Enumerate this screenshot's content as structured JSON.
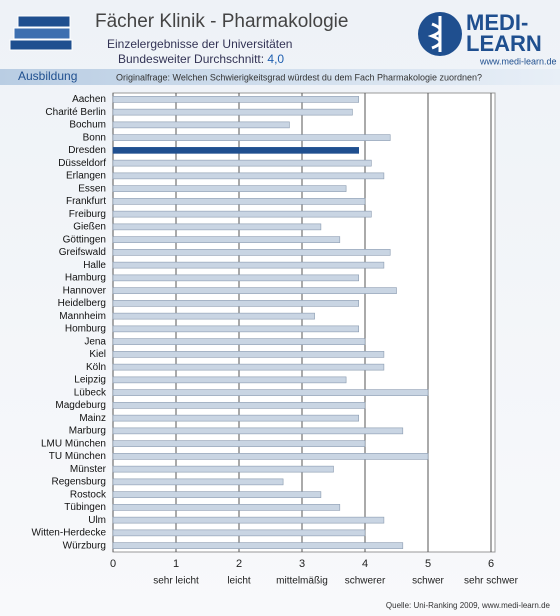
{
  "header": {
    "title": "Fächer Klinik - Pharmakologie",
    "subtitle": "Einzelergebnisse der Universitäten",
    "average_label": "Bundesweiter Durchschnitt:",
    "average_value": "4,0",
    "section": "Ausbildung",
    "question": "Originalfrage: Welchen Schwierigkeitsgrad würdest du dem Fach Pharmakologie zuordnen?",
    "logo_top": "MEDI-",
    "logo_bottom": "LEARN",
    "logo_url": "www.medi-learn.de"
  },
  "chart_data": {
    "type": "hbar",
    "categories": [
      "Aachen",
      "Charité Berlin",
      "Bochum",
      "Bonn",
      "Dresden",
      "Düsseldorf",
      "Erlangen",
      "Essen",
      "Frankfurt",
      "Freiburg",
      "Gießen",
      "Göttingen",
      "Greifswald",
      "Halle",
      "Hamburg",
      "Hannover",
      "Heidelberg",
      "Mannheim",
      "Homburg",
      "Jena",
      "Kiel",
      "Köln",
      "Leipzig",
      "Lübeck",
      "Magdeburg",
      "Mainz",
      "Marburg",
      "LMU München",
      "TU München",
      "Münster",
      "Regensburg",
      "Rostock",
      "Tübingen",
      "Ulm",
      "Witten-Herdecke",
      "Würzburg"
    ],
    "values": [
      3.9,
      3.8,
      2.8,
      4.4,
      3.9,
      4.1,
      4.3,
      3.7,
      4.0,
      4.1,
      3.3,
      3.6,
      4.4,
      4.3,
      3.9,
      4.5,
      3.9,
      3.2,
      3.9,
      4.0,
      4.3,
      4.3,
      3.7,
      5.0,
      4.0,
      3.9,
      4.6,
      4.0,
      5.0,
      3.5,
      2.7,
      3.3,
      3.6,
      4.3,
      4.0,
      4.6
    ],
    "color": "#c9d5e3",
    "highlight_color": "#1f4f8f",
    "highlight_index": 4,
    "xlim": [
      0,
      6
    ],
    "xticks": [
      0,
      1,
      2,
      3,
      4,
      5,
      6
    ],
    "grid": true,
    "scale_labels": [
      {
        "value": 1,
        "label": "sehr leicht"
      },
      {
        "value": 2,
        "label": "leicht"
      },
      {
        "value": 3,
        "label": "mittelmäßig"
      },
      {
        "value": 4,
        "label": "schwerer"
      },
      {
        "value": 5,
        "label": "schwer"
      },
      {
        "value": 6,
        "label": "sehr schwer"
      }
    ],
    "source": "Quelle: Uni-Ranking 2009, www.medi-learn.de"
  }
}
